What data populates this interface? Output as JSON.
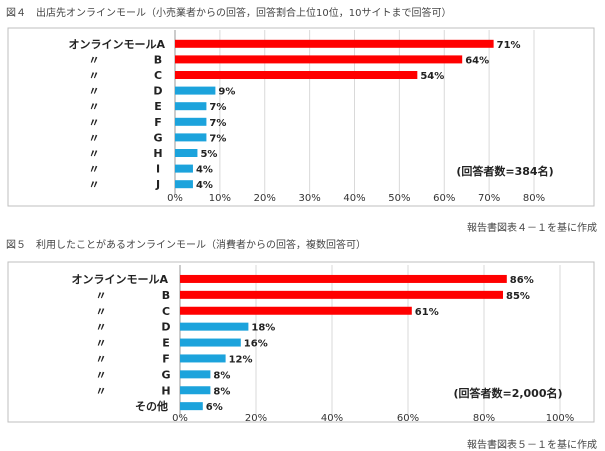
{
  "colors": {
    "highlight": "#ff0000",
    "other": "#1ca3dc",
    "frame": "#bfbfbf",
    "grid": "#d9d9d9"
  },
  "chart_data": [
    {
      "type": "bar",
      "orientation": "horizontal",
      "title": "図４　出店先オンラインモール（小売業者からの回答，回答割合上位10位，10サイトまで回答可）",
      "categories": [
        "オンラインモールA",
        "〃",
        "〃",
        "〃",
        "〃",
        "〃",
        "〃",
        "〃",
        "〃",
        "〃"
      ],
      "subcategories": [
        "",
        "B",
        "C",
        "D",
        "E",
        "F",
        "G",
        "H",
        "I",
        "J"
      ],
      "values": [
        71,
        64,
        54,
        9,
        7,
        7,
        7,
        5,
        4,
        4
      ],
      "value_labels": [
        "71%",
        "64%",
        "54%",
        "9%",
        "7%",
        "7%",
        "7%",
        "5%",
        "4%",
        "4%"
      ],
      "bar_colors": [
        "#ff0000",
        "#ff0000",
        "#ff0000",
        "#1ca3dc",
        "#1ca3dc",
        "#1ca3dc",
        "#1ca3dc",
        "#1ca3dc",
        "#1ca3dc",
        "#1ca3dc"
      ],
      "xlim": [
        0,
        80
      ],
      "xticks": [
        "0%",
        "10%",
        "20%",
        "30%",
        "40%",
        "50%",
        "60%",
        "70%",
        "80%"
      ],
      "grid": true,
      "annotation": "(回答者数=384名)",
      "source": "報告書図表４－１を基に作成"
    },
    {
      "type": "bar",
      "orientation": "horizontal",
      "title": "図５　利用したことがあるオンラインモール（消費者からの回答，複数回答可）",
      "categories": [
        "オンラインモールA",
        "〃",
        "〃",
        "〃",
        "〃",
        "〃",
        "〃",
        "〃",
        "その他"
      ],
      "subcategories": [
        "",
        "B",
        "C",
        "D",
        "E",
        "F",
        "G",
        "H",
        ""
      ],
      "values": [
        86,
        85,
        61,
        18,
        16,
        12,
        8,
        8,
        6
      ],
      "value_labels": [
        "86%",
        "85%",
        "61%",
        "18%",
        "16%",
        "12%",
        "8%",
        "8%",
        "6%"
      ],
      "bar_colors": [
        "#ff0000",
        "#ff0000",
        "#ff0000",
        "#1ca3dc",
        "#1ca3dc",
        "#1ca3dc",
        "#1ca3dc",
        "#1ca3dc",
        "#1ca3dc"
      ],
      "xlim": [
        0,
        100
      ],
      "xticks": [
        "0%",
        "20%",
        "40%",
        "60%",
        "80%",
        "100%"
      ],
      "grid": true,
      "annotation": "(回答者数=2,000名)",
      "source": "報告書図表５－１を基に作成"
    }
  ]
}
